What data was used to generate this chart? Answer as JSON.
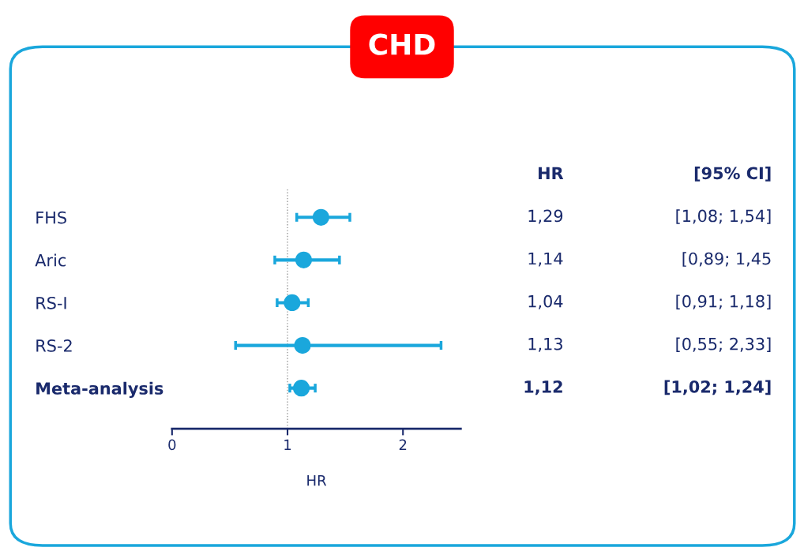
{
  "chart_data": {
    "type": "scatter",
    "orientation": "horizontal",
    "title": "CHD",
    "xlabel": "HR",
    "categories": [
      "FHS",
      "Aric",
      "RS-I",
      "RS-2",
      "Meta-analysis"
    ],
    "values": [
      1.29,
      1.14,
      1.04,
      1.13,
      1.12
    ],
    "errors": [
      [
        1.08,
        1.54
      ],
      [
        0.89,
        1.45
      ],
      [
        0.91,
        1.18
      ],
      [
        0.55,
        2.33
      ],
      [
        1.02,
        1.24
      ]
    ],
    "value_labels": [
      "1,29",
      "1,14",
      "1,04",
      "1,13",
      "1,12"
    ],
    "annotations": [
      "HR",
      "[95% CI]",
      "[1,08; 1,54]",
      "[0,89; 1,45",
      "[0,91; 1,18]",
      "[0,55; 2,33]",
      "[1,02; 1,24]"
    ],
    "color": "#1aa7dc",
    "marker": "circle",
    "xlim": [
      0,
      2.5
    ],
    "xticks": [
      0,
      1,
      2
    ],
    "ref_lines": [
      {
        "axis": "x",
        "value": 1,
        "color": "#999999",
        "line_style": "dotted"
      }
    ],
    "grid": false,
    "legend": false
  }
}
